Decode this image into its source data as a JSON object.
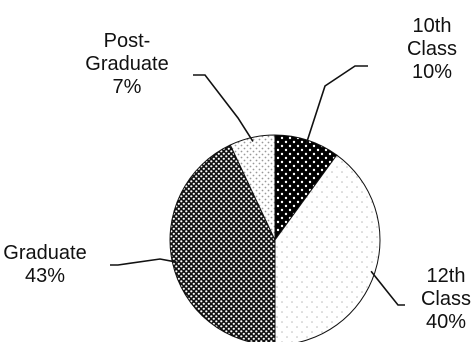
{
  "chart_data": {
    "type": "pie",
    "title": "",
    "slices": [
      {
        "label_lines": [
          "10th",
          "Class"
        ],
        "value": 10,
        "value_text": "10%"
      },
      {
        "label_lines": [
          "12th",
          "Class"
        ],
        "value": 40,
        "value_text": "40%"
      },
      {
        "label_lines": [
          "Graduate"
        ],
        "value": 43,
        "value_text": "43%"
      },
      {
        "label_lines": [
          "Post-",
          "Graduate"
        ],
        "value": 7,
        "value_text": "7%"
      }
    ],
    "start_angle": "12 o'clock",
    "direction": "clockwise",
    "legend": "none",
    "fills": [
      "black with white dots",
      "white with light grey dots",
      "dense black/white dot pattern",
      "white with grey dots"
    ]
  }
}
